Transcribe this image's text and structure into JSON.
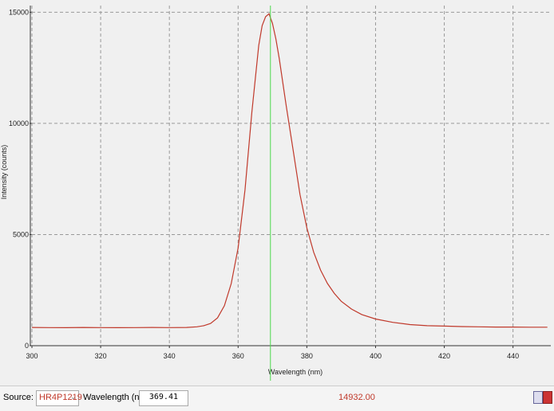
{
  "chart_data": {
    "type": "line",
    "x_label": "Wavelength (nm)",
    "y_label": "Intensity (counts)",
    "x": [
      300,
      305,
      310,
      315,
      320,
      325,
      330,
      335,
      340,
      345,
      348,
      350,
      352,
      354,
      356,
      358,
      360,
      362,
      364,
      366,
      367,
      368,
      369,
      370,
      371,
      372,
      374,
      376,
      377,
      378,
      380,
      382,
      384,
      386,
      388,
      390,
      393,
      396,
      400,
      405,
      410,
      415,
      420,
      425,
      430,
      435,
      440,
      445,
      450
    ],
    "values": [
      820,
      815,
      810,
      820,
      815,
      810,
      815,
      820,
      815,
      820,
      850,
      900,
      1000,
      1250,
      1800,
      2800,
      4400,
      7000,
      10500,
      13500,
      14400,
      14800,
      14932,
      14500,
      13800,
      12900,
      10800,
      8800,
      7800,
      6800,
      5300,
      4200,
      3400,
      2800,
      2350,
      2000,
      1650,
      1400,
      1200,
      1050,
      950,
      900,
      880,
      860,
      850,
      840,
      840,
      830,
      830
    ],
    "color": "#c0392b",
    "xlim": [
      300,
      451
    ],
    "xticks": [
      300,
      320,
      340,
      360,
      380,
      400,
      420,
      440
    ],
    "ylim": [
      0,
      15300
    ],
    "yticks": [
      0,
      5000,
      10000,
      15000
    ],
    "grid": true
  },
  "toolbar": {
    "source_label": "Source:",
    "source": "HR4P1219",
    "wavelength_label": "Wavelength (nm):",
    "wavelength": 369.41,
    "intensity": "14932.00"
  }
}
